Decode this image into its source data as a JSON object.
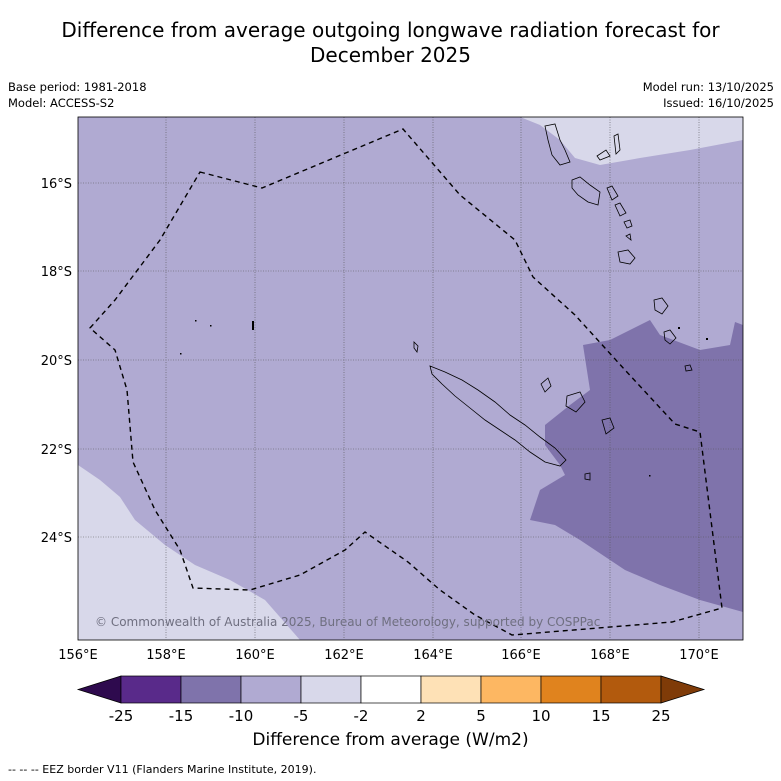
{
  "title_line1": "Difference from average outgoing longwave radiation forecast for",
  "title_line2": "December 2025",
  "base_period": "Base period: 1981-2018",
  "model": "Model: ACCESS-S2",
  "model_run": "Model run: 13/10/2025",
  "issued": "Issued: 16/10/2025",
  "copyright": "© Commonwealth of Australia 2025, Bureau of Meteorology, supported by COSPPac",
  "x_ticks": [
    "156°E",
    "158°E",
    "160°E",
    "162°E",
    "164°E",
    "166°E",
    "168°E",
    "170°E"
  ],
  "y_ticks": [
    "16°S",
    "18°S",
    "20°S",
    "22°S",
    "24°S"
  ],
  "colorbar": {
    "title": "Difference from average (W/m2)",
    "labels": [
      "-25",
      "-15",
      "-10",
      "-5",
      "-2",
      "2",
      "5",
      "10",
      "15",
      "25"
    ],
    "colors": [
      "#592a8a",
      "#7f73ab",
      "#b0aad2",
      "#d8d8ea",
      "#ffffff",
      "#fee1b6",
      "#fdb762",
      "#e0831e",
      "#b25a0d"
    ],
    "low_extend_color": "#2e0a4e",
    "high_extend_color": "#7f3b08"
  },
  "legend_note": "--  --  -- EEZ border V11 (Flanders Marine Institute, 2019)."
}
